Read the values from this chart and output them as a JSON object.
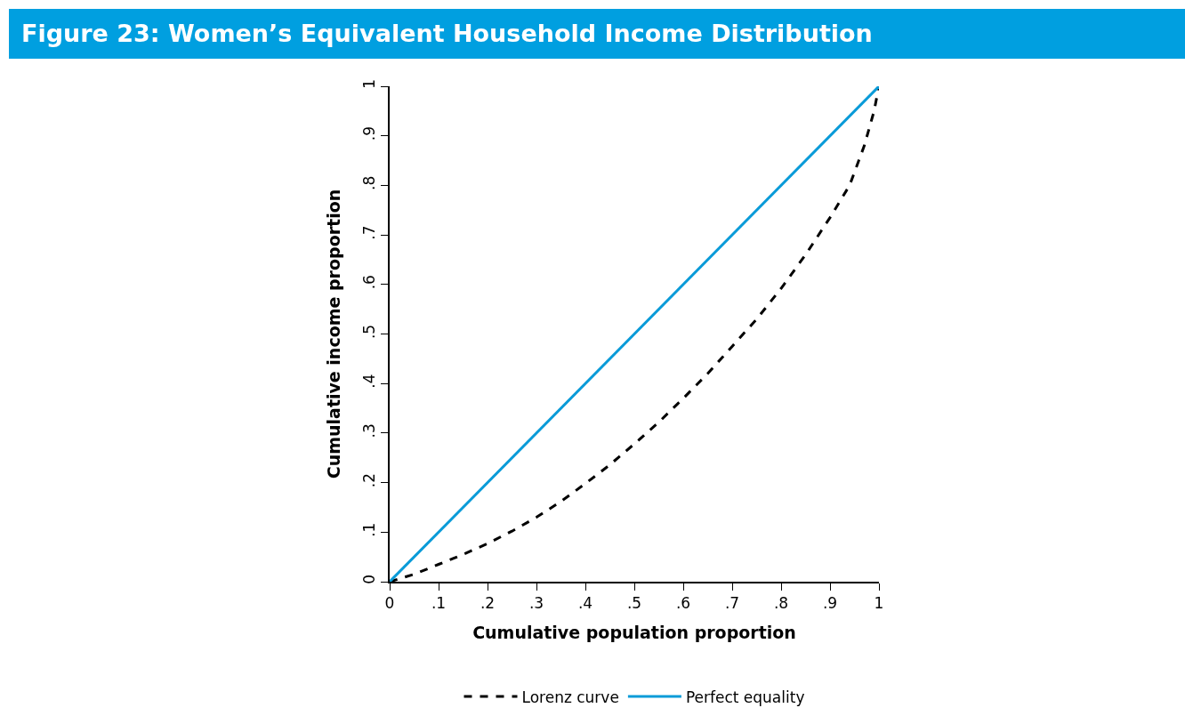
{
  "chart_data": {
    "type": "line",
    "title": "Figure 23: Women’s Equivalent Household Income Distribution",
    "xlabel": "Cumulative population proportion",
    "ylabel": "Cumulative income proportion",
    "x": [
      0,
      0.05,
      0.1,
      0.15,
      0.2,
      0.25,
      0.3,
      0.35,
      0.4,
      0.45,
      0.5,
      0.55,
      0.6,
      0.65,
      0.7,
      0.75,
      0.8,
      0.85,
      0.9,
      0.94,
      0.97,
      0.99,
      1
    ],
    "series": [
      {
        "name": "Lorenz curve",
        "color": "#000000",
        "line_style": "dashed",
        "values": [
          0,
          0.015,
          0.035,
          0.055,
          0.077,
          0.102,
          0.13,
          0.162,
          0.198,
          0.236,
          0.278,
          0.322,
          0.37,
          0.42,
          0.475,
          0.53,
          0.592,
          0.66,
          0.735,
          0.8,
          0.88,
          0.95,
          1
        ]
      },
      {
        "name": "Perfect equality",
        "color": "#0a9bd8",
        "line_style": "solid",
        "x": [
          0,
          1
        ],
        "values": [
          0,
          1
        ]
      }
    ],
    "xlim": [
      0,
      1
    ],
    "ylim": [
      0,
      1
    ],
    "xticks": [
      0,
      {
        "value": 0.1,
        "label": ".1"
      },
      {
        "value": 0.2,
        "label": ".2"
      },
      {
        "value": 0.3,
        "label": ".3"
      },
      {
        "value": 0.4,
        "label": ".4"
      },
      {
        "value": 0.5,
        "label": ".5"
      },
      {
        "value": 0.6,
        "label": ".6"
      },
      {
        "value": 0.7,
        "label": ".7"
      },
      {
        "value": 0.8,
        "label": ".8"
      },
      {
        "value": 0.9,
        "label": ".9"
      },
      1
    ],
    "yticks": [
      0,
      {
        "value": 0.1,
        "label": ".1"
      },
      {
        "value": 0.2,
        "label": ".2"
      },
      {
        "value": 0.3,
        "label": ".3"
      },
      {
        "value": 0.4,
        "label": ".4"
      },
      {
        "value": 0.5,
        "label": ".5"
      },
      {
        "value": 0.6,
        "label": ".6"
      },
      {
        "value": 0.7,
        "label": ".7"
      },
      {
        "value": 0.8,
        "label": ".8"
      },
      {
        "value": 0.9,
        "label": ".9"
      },
      1
    ],
    "grid": false,
    "legend": "bottom",
    "marker": "none"
  }
}
